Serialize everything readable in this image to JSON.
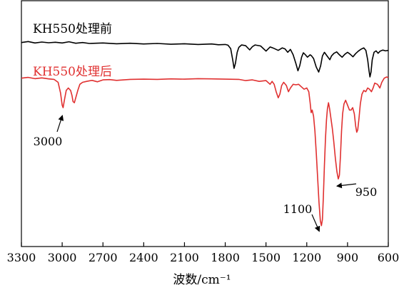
{
  "chart_data": {
    "type": "line",
    "xlabel": "波数/cm⁻¹",
    "ylabel": "",
    "xlim": [
      3300,
      600
    ],
    "x_reversed": true,
    "xticks": [
      3300,
      3000,
      2700,
      2400,
      2100,
      1800,
      1500,
      1200,
      900,
      600
    ],
    "y_axis_ticks": false,
    "ylim": [
      0,
      100
    ],
    "series": [
      {
        "name": "KH550处理前",
        "color": "#000000",
        "points": [
          [
            3300,
            83.0
          ],
          [
            3250,
            83.4
          ],
          [
            3200,
            82.8
          ],
          [
            3150,
            83.2
          ],
          [
            3100,
            82.9
          ],
          [
            3050,
            83.1
          ],
          [
            3000,
            82.8
          ],
          [
            2950,
            83.3
          ],
          [
            2900,
            82.7
          ],
          [
            2850,
            83.0
          ],
          [
            2800,
            82.6
          ],
          [
            2700,
            82.8
          ],
          [
            2600,
            82.5
          ],
          [
            2500,
            82.7
          ],
          [
            2400,
            82.4
          ],
          [
            2300,
            82.6
          ],
          [
            2200,
            82.3
          ],
          [
            2100,
            82.5
          ],
          [
            2000,
            82.2
          ],
          [
            1900,
            82.4
          ],
          [
            1850,
            82.1
          ],
          [
            1800,
            82.2
          ],
          [
            1780,
            81.9
          ],
          [
            1760,
            80.5
          ],
          [
            1745,
            76.0
          ],
          [
            1735,
            72.5
          ],
          [
            1725,
            74.5
          ],
          [
            1712,
            79.0
          ],
          [
            1700,
            81.0
          ],
          [
            1680,
            82.0
          ],
          [
            1650,
            81.7
          ],
          [
            1620,
            80.0
          ],
          [
            1600,
            81.3
          ],
          [
            1580,
            82.0
          ],
          [
            1540,
            81.6
          ],
          [
            1500,
            79.5
          ],
          [
            1470,
            81.2
          ],
          [
            1450,
            80.8
          ],
          [
            1410,
            79.8
          ],
          [
            1380,
            80.8
          ],
          [
            1360,
            80.4
          ],
          [
            1340,
            79.0
          ],
          [
            1320,
            80.2
          ],
          [
            1300,
            78.0
          ],
          [
            1280,
            74.5
          ],
          [
            1265,
            71.5
          ],
          [
            1252,
            73.5
          ],
          [
            1238,
            77.0
          ],
          [
            1225,
            78.8
          ],
          [
            1210,
            78.0
          ],
          [
            1195,
            77.0
          ],
          [
            1175,
            78.0
          ],
          [
            1165,
            77.6
          ],
          [
            1150,
            76.5
          ],
          [
            1130,
            73.0
          ],
          [
            1112,
            71.0
          ],
          [
            1098,
            73.5
          ],
          [
            1085,
            77.5
          ],
          [
            1070,
            79.0
          ],
          [
            1050,
            77.5
          ],
          [
            1030,
            76.0
          ],
          [
            1018,
            77.5
          ],
          [
            1000,
            78.6
          ],
          [
            980,
            79.2
          ],
          [
            960,
            78.0
          ],
          [
            940,
            77.0
          ],
          [
            920,
            78.2
          ],
          [
            900,
            79.0
          ],
          [
            880,
            78.2
          ],
          [
            860,
            77.2
          ],
          [
            840,
            78.5
          ],
          [
            820,
            79.5
          ],
          [
            800,
            80.3
          ],
          [
            780,
            80.8
          ],
          [
            765,
            79.8
          ],
          [
            752,
            76.0
          ],
          [
            742,
            71.5
          ],
          [
            735,
            69.0
          ],
          [
            727,
            71.0
          ],
          [
            718,
            76.0
          ],
          [
            705,
            79.0
          ],
          [
            690,
            79.6
          ],
          [
            675,
            78.6
          ],
          [
            660,
            79.5
          ],
          [
            640,
            79.9
          ],
          [
            620,
            79.6
          ],
          [
            600,
            79.8
          ]
        ]
      },
      {
        "name": "KH550处理后",
        "color": "#e03030",
        "points": [
          [
            3300,
            68.5
          ],
          [
            3250,
            68.8
          ],
          [
            3200,
            68.3
          ],
          [
            3150,
            68.6
          ],
          [
            3100,
            68.2
          ],
          [
            3060,
            68.0
          ],
          [
            3030,
            66.8
          ],
          [
            3012,
            62.5
          ],
          [
            3000,
            57.5
          ],
          [
            2993,
            56.5
          ],
          [
            2982,
            60.0
          ],
          [
            2970,
            63.5
          ],
          [
            2955,
            64.5
          ],
          [
            2938,
            63.5
          ],
          [
            2928,
            61.5
          ],
          [
            2920,
            59.0
          ],
          [
            2910,
            58.5
          ],
          [
            2900,
            60.5
          ],
          [
            2885,
            63.5
          ],
          [
            2870,
            66.0
          ],
          [
            2850,
            66.8
          ],
          [
            2820,
            67.2
          ],
          [
            2780,
            67.6
          ],
          [
            2740,
            67.0
          ],
          [
            2700,
            67.8
          ],
          [
            2650,
            67.9
          ],
          [
            2600,
            67.6
          ],
          [
            2500,
            68.0
          ],
          [
            2400,
            68.1
          ],
          [
            2300,
            68.0
          ],
          [
            2200,
            68.2
          ],
          [
            2100,
            68.1
          ],
          [
            2000,
            68.3
          ],
          [
            1900,
            68.2
          ],
          [
            1800,
            68.1
          ],
          [
            1700,
            68.0
          ],
          [
            1650,
            67.5
          ],
          [
            1600,
            67.8
          ],
          [
            1550,
            67.2
          ],
          [
            1500,
            67.5
          ],
          [
            1470,
            66.0
          ],
          [
            1455,
            67.2
          ],
          [
            1440,
            66.0
          ],
          [
            1425,
            63.0
          ],
          [
            1410,
            60.5
          ],
          [
            1398,
            62.0
          ],
          [
            1385,
            65.5
          ],
          [
            1370,
            66.8
          ],
          [
            1350,
            65.5
          ],
          [
            1335,
            63.0
          ],
          [
            1320,
            64.5
          ],
          [
            1300,
            66.0
          ],
          [
            1280,
            65.8
          ],
          [
            1260,
            66.0
          ],
          [
            1240,
            65.0
          ],
          [
            1220,
            64.0
          ],
          [
            1200,
            64.5
          ],
          [
            1185,
            63.0
          ],
          [
            1175,
            58.5
          ],
          [
            1168,
            54.5
          ],
          [
            1160,
            55.5
          ],
          [
            1150,
            53.0
          ],
          [
            1140,
            47.0
          ],
          [
            1130,
            38.0
          ],
          [
            1120,
            28.0
          ],
          [
            1110,
            18.0
          ],
          [
            1100,
            10.5
          ],
          [
            1092,
            8.5
          ],
          [
            1085,
            11.0
          ],
          [
            1078,
            20.0
          ],
          [
            1070,
            33.0
          ],
          [
            1062,
            44.0
          ],
          [
            1055,
            51.5
          ],
          [
            1048,
            56.0
          ],
          [
            1040,
            58.5
          ],
          [
            1032,
            56.0
          ],
          [
            1022,
            52.0
          ],
          [
            1012,
            48.0
          ],
          [
            1002,
            43.0
          ],
          [
            990,
            36.0
          ],
          [
            978,
            30.5
          ],
          [
            968,
            27.5
          ],
          [
            960,
            29.0
          ],
          [
            952,
            37.0
          ],
          [
            944,
            47.0
          ],
          [
            936,
            54.0
          ],
          [
            926,
            58.0
          ],
          [
            914,
            59.5
          ],
          [
            900,
            57.5
          ],
          [
            886,
            55.5
          ],
          [
            874,
            55.5
          ],
          [
            862,
            56.5
          ],
          [
            850,
            54.0
          ],
          [
            840,
            49.0
          ],
          [
            832,
            46.5
          ],
          [
            825,
            47.5
          ],
          [
            816,
            52.0
          ],
          [
            806,
            58.0
          ],
          [
            794,
            62.0
          ],
          [
            780,
            63.5
          ],
          [
            766,
            63.0
          ],
          [
            752,
            64.5
          ],
          [
            738,
            64.0
          ],
          [
            724,
            63.0
          ],
          [
            712,
            64.5
          ],
          [
            700,
            66.5
          ],
          [
            680,
            66.0
          ],
          [
            662,
            64.5
          ],
          [
            648,
            66.8
          ],
          [
            630,
            68.5
          ],
          [
            612,
            69.0
          ],
          [
            600,
            68.7
          ]
        ]
      }
    ],
    "annotations": [
      {
        "text": "3000",
        "x": 2993,
        "y": 56.5
      },
      {
        "text": "1100",
        "x": 1092,
        "y": 8.5
      },
      {
        "text": "950",
        "x": 968,
        "y": 27.5
      }
    ],
    "legend": [
      {
        "text": "KH550处理前",
        "color": "#000000"
      },
      {
        "text": "KH550处理后",
        "color": "#e03030"
      }
    ]
  }
}
